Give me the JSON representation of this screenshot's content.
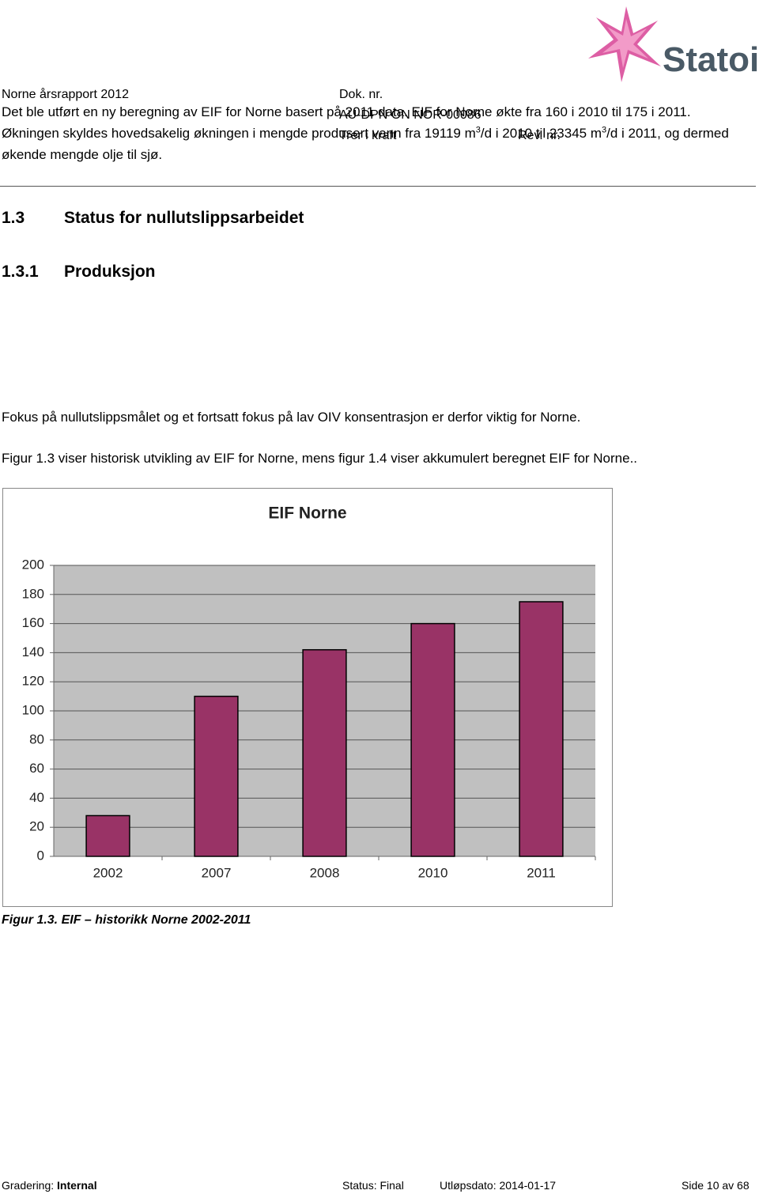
{
  "header": {
    "title": "Norne årsrapport 2012",
    "doc_label": "Dok. nr.",
    "doc_number": "AU-DPN ON NOR-00086",
    "effective_label": "Trer i kraft",
    "rev_label": "Rev. nr.",
    "logo": "Statoil"
  },
  "section": {
    "number": "1.3",
    "title": "Status for nullutslippsarbeidet"
  },
  "subsection": {
    "number": "1.3.1",
    "title": "Produksjon"
  },
  "paragraphs": [
    [
      "Det ble utført en ny beregning av EIF for Norne basert på 2011 data. EIF for Norne økte fra 160 i 2010 til 175 i 2011. Økningen skyldes hovedsakelig økningen i mengde produsert vann fra 19119 m",
      "3",
      "/d i 2010 til 23345 m",
      "3",
      "/d i 2011, og dermed økende mengde olje til sjø."
    ],
    "Fokus på nullutslippsmålet og et fortsatt fokus på lav OIV konsentrasjon er derfor viktig for Norne.",
    "Figur 1.3 viser historisk utvikling av EIF for Norne, mens figur 1.4 viser akkumulert beregnet EIF for Norne.."
  ],
  "chart_data": {
    "type": "bar",
    "title": "EIF Norne",
    "categories": [
      "2002",
      "2007",
      "2008",
      "2010",
      "2011"
    ],
    "values": [
      28,
      110,
      142,
      160,
      175
    ],
    "color": "#993366",
    "ylim": [
      0,
      200
    ],
    "yticks": [
      0,
      20,
      40,
      60,
      80,
      100,
      120,
      140,
      160,
      180,
      200
    ],
    "grid": true
  },
  "caption": "Figur 1.3. EIF – historikk Norne 2002-2011",
  "footer": {
    "grading_label": "Gradering:",
    "grading": "Internal",
    "status": "Status: Final",
    "expiry": "Utløpsdato: 2014-01-17",
    "page": "Side 10 av 68"
  }
}
